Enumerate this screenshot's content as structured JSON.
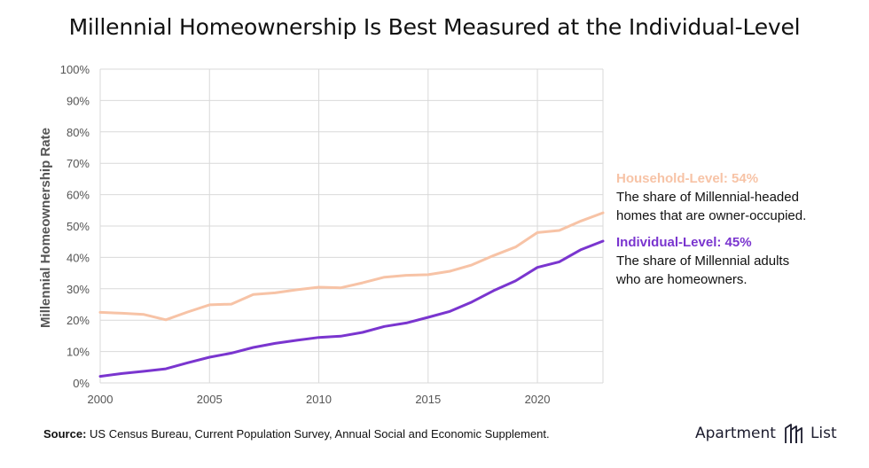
{
  "title": "Millennial Homeownership Is Best Measured at the Individual-Level",
  "chart_data": {
    "type": "line",
    "title": "Millennial Homeownership Is Best Measured at the Individual-Level",
    "xlabel": "",
    "ylabel": "Millennial Homeownership Rate",
    "xlim": [
      2000,
      2023
    ],
    "ylim": [
      0,
      100
    ],
    "x_ticks": [
      2000,
      2005,
      2010,
      2015,
      2020
    ],
    "y_ticks": [
      "0%",
      "10%",
      "20%",
      "30%",
      "40%",
      "50%",
      "60%",
      "70%",
      "80%",
      "90%",
      "100%"
    ],
    "y_tick_values": [
      0,
      10,
      20,
      30,
      40,
      50,
      60,
      70,
      80,
      90,
      100
    ],
    "grid": true,
    "x": [
      2000,
      2001,
      2002,
      2003,
      2004,
      2005,
      2006,
      2007,
      2008,
      2009,
      2010,
      2011,
      2012,
      2013,
      2014,
      2015,
      2016,
      2017,
      2018,
      2019,
      2020,
      2021,
      2022,
      2023
    ],
    "series": [
      {
        "name": "Household-Level",
        "color": "#f7c3a6",
        "values": [
          22.5,
          22.2,
          21.8,
          20.1,
          22.6,
          24.9,
          25.1,
          28.2,
          28.7,
          29.7,
          30.5,
          30.3,
          31.9,
          33.7,
          34.3,
          34.5,
          35.6,
          37.6,
          40.6,
          43.3,
          47.9,
          48.6,
          51.6,
          54.2
        ]
      },
      {
        "name": "Individual-Level",
        "color": "#7a35cf",
        "values": [
          2.1,
          3.0,
          3.7,
          4.5,
          6.4,
          8.2,
          9.5,
          11.3,
          12.6,
          13.6,
          14.5,
          14.9,
          16.1,
          18.0,
          19.1,
          20.9,
          22.8,
          25.8,
          29.4,
          32.5,
          36.8,
          38.6,
          42.5,
          45.2
        ]
      }
    ],
    "annotations": [
      {
        "id": "household",
        "heading": "Household-Level: 54%",
        "line1": "The share of Millennial-headed",
        "line2": "homes that are owner-occupied.",
        "color": "#f7c3a6"
      },
      {
        "id": "individual",
        "heading": "Individual-Level: 45%",
        "line1": "The share of Millennial adults",
        "line2": "who are homeowners.",
        "color": "#7a35cf"
      }
    ]
  },
  "source": {
    "label": "Source:",
    "text": " US Census Bureau, Current Population Survey, Annual Social and Economic Supplement."
  },
  "brand": {
    "left": "Apartment",
    "right": "List",
    "logo_icon": "apartment-list-logo-icon"
  },
  "colors": {
    "grid": "#d9d9d9",
    "axis_text": "#555555",
    "ylabel": "#555555"
  }
}
